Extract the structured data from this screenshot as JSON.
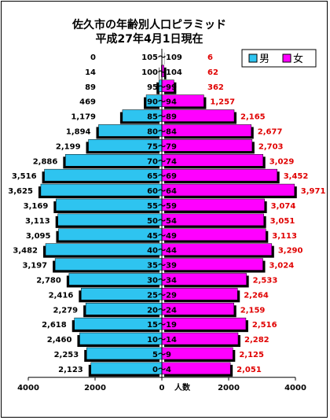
{
  "chart_data": {
    "type": "bar",
    "title": "佐久市の年齢別人口ピラミッド",
    "subtitle": "平成27年4月1日現在",
    "xlabel": "人数",
    "xlim": [
      -4000,
      4000
    ],
    "x_ticks": [
      "4000",
      "2000",
      "0",
      "2000",
      "4000"
    ],
    "x_tick_values": [
      -4000,
      -2000,
      0,
      2000,
      4000
    ],
    "legend": {
      "placement": "top-right",
      "male_label": "男",
      "female_label": "女"
    },
    "colors": {
      "male": "#2ec4f0",
      "female": "#ff00ff",
      "female_value_text": "#e00000",
      "male_value_text": "#000000"
    },
    "categories": [
      "105～109",
      "100～104",
      "95～99",
      "90～94",
      "85～89",
      "80～84",
      "75～79",
      "70～74",
      "65～69",
      "60～64",
      "55～59",
      "50～54",
      "45～49",
      "40～44",
      "35～39",
      "30～34",
      "25～29",
      "20～24",
      "15～19",
      "10～14",
      "5～9",
      "0～4"
    ],
    "series": [
      {
        "name": "男",
        "values": [
          0,
          14,
          89,
          469,
          1179,
          1894,
          2199,
          2886,
          3516,
          3625,
          3169,
          3113,
          3095,
          3482,
          3197,
          2780,
          2416,
          2279,
          2618,
          2460,
          2253,
          2123
        ],
        "labels": [
          "0",
          "14",
          "89",
          "469",
          "1,179",
          "1,894",
          "2,199",
          "2,886",
          "3,516",
          "3,625",
          "3,169",
          "3,113",
          "3,095",
          "3,482",
          "3,197",
          "2,780",
          "2,416",
          "2,279",
          "2,618",
          "2,460",
          "2,253",
          "2,123"
        ]
      },
      {
        "name": "女",
        "values": [
          6,
          62,
          362,
          1257,
          2165,
          2677,
          2703,
          3029,
          3452,
          3971,
          3074,
          3051,
          3113,
          3290,
          3024,
          2533,
          2264,
          2159,
          2516,
          2282,
          2125,
          2051
        ],
        "labels": [
          "6",
          "62",
          "362",
          "1,257",
          "2,165",
          "2,677",
          "2,703",
          "3,029",
          "3,452",
          "3,971",
          "3,074",
          "3,051",
          "3,113",
          "3,290",
          "3,024",
          "2,533",
          "2,264",
          "2,159",
          "2,516",
          "2,282",
          "2,125",
          "2,051"
        ]
      }
    ]
  }
}
